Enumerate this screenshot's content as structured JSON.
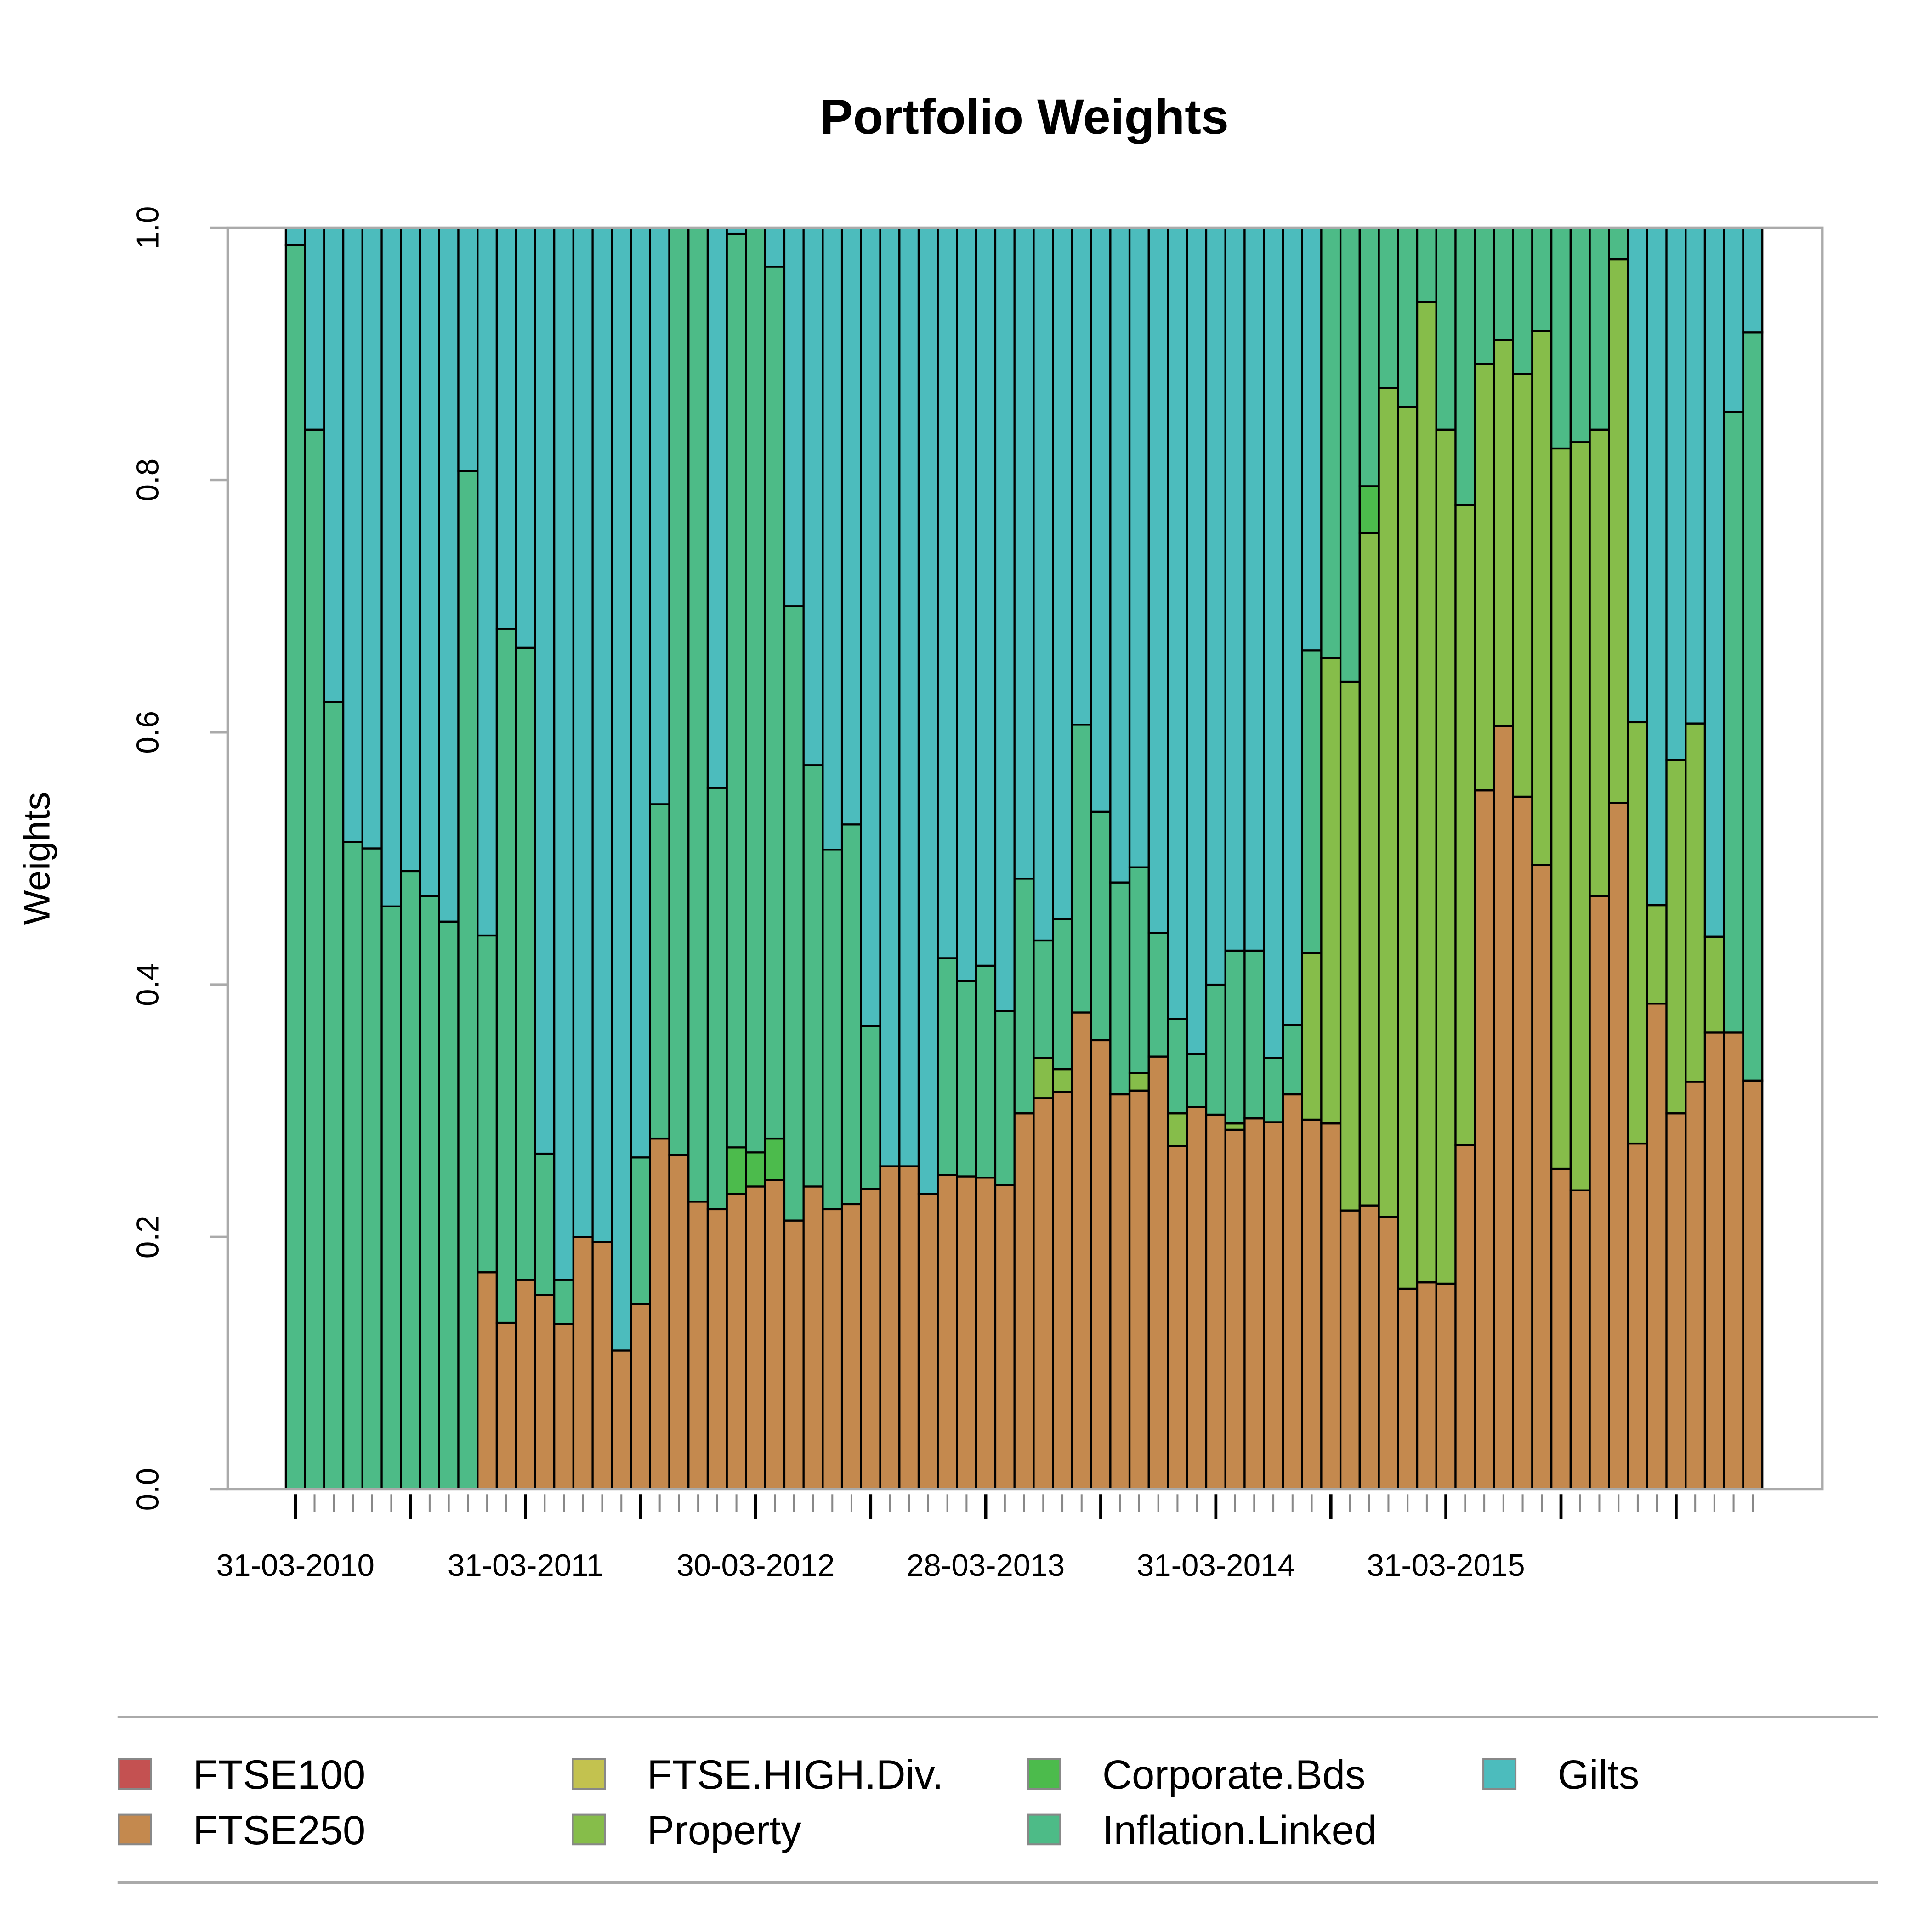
{
  "chart_data": {
    "type": "stacked-bar",
    "title": "Portfolio Weights",
    "y_label": "Weights",
    "categories": [
      "31-03-2010",
      null,
      null,
      null,
      null,
      null,
      null,
      null,
      null,
      null,
      null,
      null,
      "31-03-2011",
      null,
      null,
      null,
      null,
      null,
      null,
      null,
      null,
      null,
      null,
      null,
      "30-03-2012",
      null,
      null,
      null,
      null,
      null,
      null,
      null,
      null,
      null,
      null,
      null,
      "28-03-2013",
      null,
      null,
      null,
      null,
      null,
      null,
      null,
      null,
      null,
      null,
      null,
      "31-03-2014",
      null,
      null,
      null,
      null,
      null,
      null,
      null,
      null,
      null,
      null,
      null,
      "31-03-2015",
      null,
      null,
      null,
      null,
      null,
      null,
      null,
      null,
      null,
      null,
      null,
      null,
      null,
      null,
      null,
      null
    ],
    "ylim": [
      0,
      1
    ],
    "yticks": [
      {
        "value": 0,
        "label": "0.0"
      },
      0.2,
      0.4,
      0.6,
      0.8,
      {
        "value": 1,
        "label": "1.0"
      }
    ],
    "series": [
      {
        "name": "FTSE100",
        "color": "#c45151",
        "values": [
          0,
          0,
          0,
          0,
          0,
          0,
          0,
          0,
          0,
          0,
          0,
          0,
          0,
          0,
          0,
          0,
          0,
          0,
          0,
          0,
          0,
          0,
          0,
          0,
          0,
          0,
          0,
          0,
          0,
          0,
          0,
          0,
          0,
          0,
          0,
          0,
          0,
          0,
          0,
          0,
          0,
          0,
          0,
          0,
          0,
          0,
          0,
          0,
          0,
          0,
          0,
          0,
          0,
          0,
          0,
          0,
          0,
          0,
          0,
          0,
          0,
          0,
          0,
          0,
          0,
          0,
          0,
          0,
          0,
          0,
          0,
          0,
          0,
          0,
          0,
          0,
          0
        ]
      },
      {
        "name": "FTSE250",
        "color": "#c4894e",
        "values": [
          0,
          0,
          0,
          0,
          0,
          0,
          0,
          0,
          0,
          0,
          0.172,
          0.132,
          0.166,
          0.154,
          0.131,
          0.2,
          0.196,
          0.11,
          0.147,
          0.278,
          0.265,
          0.228,
          0.222,
          0.234,
          0.24,
          0.245,
          0.213,
          0.24,
          0.222,
          0.226,
          0.238,
          0.256,
          0.256,
          0.234,
          0.249,
          0.248,
          0.247,
          0.241,
          0.298,
          0.31,
          0.315,
          0.378,
          0.356,
          0.313,
          0.316,
          0.343,
          0.272,
          0.303,
          0.297,
          0.285,
          0.294,
          0.291,
          0.313,
          0.293,
          0.29,
          0.221,
          0.225,
          0.216,
          0.159,
          0.164,
          0.163,
          0.273,
          0.554,
          0.605,
          0.549,
          0.495,
          0.254,
          0.237,
          0.47,
          0.544,
          0.274,
          0.385,
          0.298,
          0.323,
          0.362,
          0.362,
          0.324
        ]
      },
      {
        "name": "FTSE.HIGH.Div.",
        "color": "#c3c24f",
        "values": [
          0,
          0,
          0,
          0,
          0,
          0,
          0,
          0,
          0,
          0,
          0,
          0,
          0,
          0,
          0,
          0,
          0,
          0,
          0,
          0,
          0,
          0,
          0,
          0,
          0,
          0,
          0,
          0,
          0,
          0,
          0,
          0,
          0,
          0,
          0,
          0,
          0,
          0,
          0,
          0,
          0,
          0,
          0,
          0,
          0,
          0,
          0,
          0,
          0,
          0,
          0,
          0,
          0,
          0,
          0,
          0,
          0,
          0,
          0,
          0,
          0,
          0,
          0,
          0,
          0,
          0,
          0,
          0,
          0,
          0,
          0,
          0,
          0,
          0,
          0,
          0,
          0
        ]
      },
      {
        "name": "Property",
        "color": "#86bd4a",
        "values": [
          0,
          0,
          0,
          0,
          0,
          0,
          0,
          0,
          0,
          0,
          0,
          0,
          0,
          0,
          0,
          0,
          0,
          0,
          0,
          0,
          0,
          0,
          0,
          0,
          0,
          0,
          0,
          0,
          0,
          0,
          0,
          0,
          0,
          0,
          0,
          0,
          0,
          0,
          0,
          0.032,
          0.018,
          0,
          0,
          0,
          0.014,
          0,
          0.026,
          0,
          0,
          0.005,
          0,
          0,
          0,
          0.132,
          0.369,
          0.419,
          0.533,
          0.657,
          0.699,
          0.777,
          0.677,
          0.507,
          0.338,
          0.306,
          0.335,
          0.423,
          0.571,
          0.593,
          0.37,
          0.431,
          0.334,
          0.078,
          0.28,
          0.284,
          0.076,
          0,
          0
        ]
      },
      {
        "name": "Corporate.Bds",
        "color": "#4cbb4c",
        "values": [
          0,
          0,
          0,
          0,
          0,
          0,
          0,
          0,
          0,
          0,
          0,
          0,
          0,
          0,
          0,
          0,
          0,
          0,
          0,
          0,
          0,
          0,
          0,
          0.037,
          0.027,
          0.033,
          0,
          0,
          0,
          0,
          0,
          0,
          0,
          0,
          0,
          0,
          0,
          0,
          0,
          0,
          0,
          0,
          0,
          0,
          0,
          0,
          0,
          0,
          0,
          0,
          0,
          0,
          0,
          0,
          0,
          0,
          0.037,
          0,
          0,
          0,
          0,
          0,
          0,
          0,
          0,
          0,
          0,
          0,
          0,
          0,
          0,
          0,
          0,
          0,
          0,
          0,
          0
        ]
      },
      {
        "name": "Inflation.Linked",
        "color": "#4dbb87",
        "values": [
          0.986,
          0.84,
          0.624,
          0.513,
          0.508,
          0.462,
          0.49,
          0.47,
          0.45,
          0.807,
          0.267,
          0.55,
          0.501,
          0.112,
          0.035,
          0,
          0,
          0,
          0.116,
          0.265,
          0.735,
          0.772,
          0.334,
          0.724,
          0.733,
          0.691,
          0.487,
          0.334,
          0.285,
          0.301,
          0.129,
          0,
          0,
          0,
          0.172,
          0.155,
          0.168,
          0.138,
          0.186,
          0.093,
          0.119,
          0.228,
          0.181,
          0.168,
          0.163,
          0.098,
          0.075,
          0.042,
          0.103,
          0.137,
          0.133,
          0.051,
          0.055,
          0.24,
          0.341,
          0.36,
          0.205,
          0.127,
          0.142,
          0.059,
          0.16,
          0.22,
          0.108,
          0.089,
          0.116,
          0.082,
          0.175,
          0.17,
          0.16,
          0.025,
          0,
          0,
          0,
          0,
          0,
          0.492,
          0.593
        ]
      },
      {
        "name": "Gilts",
        "color": "#4cbcbd",
        "values": [
          0.014,
          0.16,
          0.376,
          0.487,
          0.492,
          0.538,
          0.51,
          0.53,
          0.55,
          0.193,
          0.561,
          0.318,
          0.333,
          0.734,
          0.834,
          0.8,
          0.804,
          0.89,
          0.737,
          0.457,
          0,
          0,
          0.444,
          0.005,
          0,
          0.031,
          0.3,
          0.426,
          0.493,
          0.473,
          0.633,
          0.744,
          0.744,
          0.766,
          0.579,
          0.597,
          0.585,
          0.621,
          0.516,
          0.565,
          0.548,
          0.394,
          0.463,
          0.519,
          0.507,
          0.559,
          0.627,
          0.655,
          0.6,
          0.573,
          0.573,
          0.658,
          0.632,
          0.335,
          0,
          0,
          0,
          0,
          0,
          0,
          0,
          0,
          0,
          0,
          0,
          0,
          0,
          0,
          0,
          0,
          0.392,
          0.537,
          0.422,
          0.393,
          0.562,
          0.146,
          0.083
        ]
      }
    ]
  }
}
